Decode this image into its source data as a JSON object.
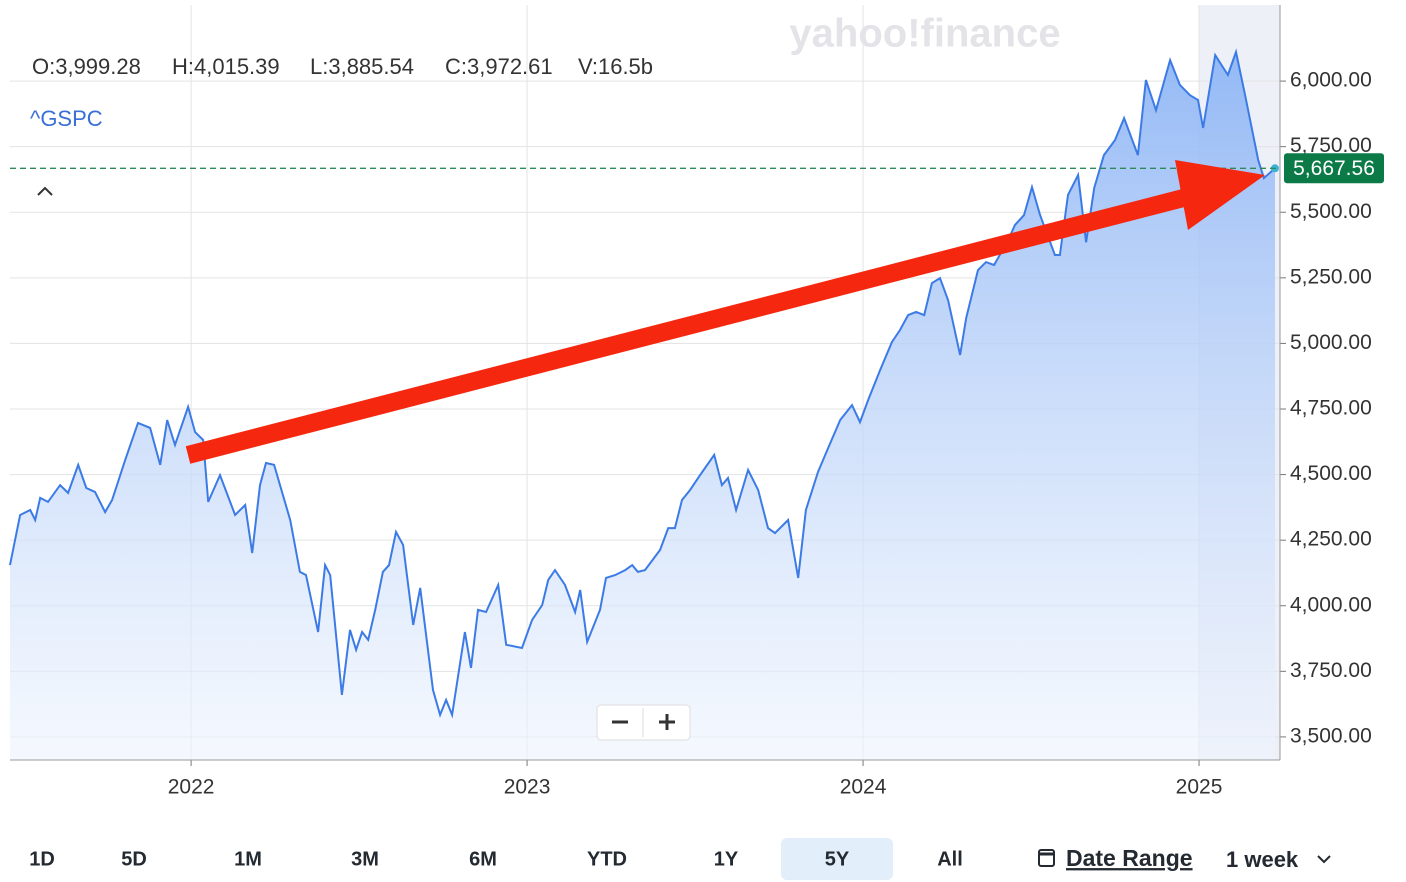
{
  "chart_data": {
    "type": "area",
    "symbol": "^GSPC",
    "watermark": "yahoo!finance",
    "ohlc": [
      "O:3,999.28",
      "H:4,015.39",
      "L:3,885.54",
      "C:3,972.61",
      "V:16.5b"
    ],
    "x": [
      2021.461,
      2021.491,
      2021.521,
      2021.536,
      2021.551,
      2021.574,
      2021.61,
      2021.634,
      2021.664,
      2021.688,
      2021.714,
      2021.744,
      2021.765,
      2021.804,
      2021.842,
      2021.878,
      2021.908,
      2021.929,
      2021.952,
      2021.991,
      2022.012,
      2022.036,
      2022.051,
      2022.086,
      2022.131,
      2022.161,
      2022.182,
      2022.205,
      2022.223,
      2022.247,
      2022.295,
      2022.324,
      2022.342,
      2022.378,
      2022.399,
      2022.414,
      2022.449,
      2022.473,
      2022.491,
      2022.509,
      2022.527,
      2022.548,
      2022.571,
      2022.589,
      2022.61,
      2022.631,
      2022.661,
      2022.682,
      2022.72,
      2022.741,
      2022.759,
      2022.777,
      2022.815,
      2022.833,
      2022.854,
      2022.878,
      2022.914,
      2022.938,
      2022.985,
      2023.015,
      2023.045,
      2023.063,
      2023.083,
      2023.113,
      2023.143,
      2023.158,
      2023.179,
      2023.217,
      2023.235,
      2023.262,
      2023.292,
      2023.313,
      2023.33,
      2023.351,
      2023.396,
      2023.42,
      2023.44,
      2023.461,
      2023.485,
      2023.515,
      2023.557,
      2023.58,
      2023.598,
      2023.622,
      2023.658,
      2023.688,
      2023.717,
      2023.738,
      2023.777,
      2023.807,
      2023.83,
      2023.866,
      2023.896,
      2023.932,
      2023.967,
      2023.991,
      2024.015,
      2024.051,
      2024.086,
      2024.11,
      2024.134,
      2024.158,
      2024.182,
      2024.205,
      2024.229,
      2024.253,
      2024.289,
      2024.307,
      2024.342,
      2024.366,
      2024.39,
      2024.432,
      2024.452,
      2024.479,
      2024.503,
      2024.527,
      2024.571,
      2024.586,
      2024.61,
      2024.64,
      2024.664,
      2024.688,
      2024.717,
      2024.75,
      2024.777,
      2024.818,
      2024.842,
      2024.872,
      2024.914,
      2024.943,
      2024.973,
      2024.997,
      2025.012,
      2025.048,
      2025.086,
      2025.11,
      2025.137,
      2025.176,
      2025.193,
      2025.226
    ],
    "series": [
      {
        "name": "^GSPC",
        "color": "#3c7be6",
        "values": [
          4155,
          4346,
          4365,
          4327,
          4411,
          4396,
          4460,
          4430,
          4537,
          4449,
          4434,
          4357,
          4403,
          4556,
          4697,
          4678,
          4537,
          4708,
          4613,
          4758,
          4662,
          4632,
          4396,
          4498,
          4346,
          4384,
          4201,
          4460,
          4544,
          4537,
          4327,
          4129,
          4117,
          3900,
          4155,
          4117,
          3660,
          3908,
          3832,
          3900,
          3870,
          3984,
          4129,
          4155,
          4281,
          4232,
          3927,
          4068,
          3679,
          3584,
          3641,
          3584,
          3900,
          3763,
          3984,
          3976,
          4079,
          3851,
          3839,
          3946,
          4003,
          4098,
          4136,
          4079,
          3976,
          4060,
          3862,
          3984,
          4106,
          4117,
          4136,
          4155,
          4129,
          4136,
          4213,
          4296,
          4296,
          4403,
          4441,
          4498,
          4575,
          4460,
          4487,
          4365,
          4518,
          4441,
          4296,
          4277,
          4327,
          4106,
          4365,
          4510,
          4601,
          4708,
          4765,
          4700,
          4784,
          4899,
          5005,
          5051,
          5108,
          5120,
          5108,
          5230,
          5249,
          5165,
          4956,
          5097,
          5280,
          5310,
          5299,
          5394,
          5451,
          5489,
          5596,
          5489,
          5337,
          5337,
          5566,
          5642,
          5386,
          5592,
          5718,
          5775,
          5859,
          5718,
          6004,
          5889,
          6080,
          5985,
          5946,
          5928,
          5821,
          6099,
          6023,
          6111,
          5946,
          5699,
          5630,
          5667.56
        ]
      }
    ],
    "last_price": {
      "value": 5667.56,
      "label": "5,667.56"
    },
    "xlim": [
      2021.461,
      2025.241
    ],
    "xticks": [
      2022,
      2023,
      2024,
      2025
    ],
    "ylim": [
      3412,
      6290
    ],
    "yticks": [
      {
        "value": 3500,
        "label": "3,500.00"
      },
      {
        "value": 3750,
        "label": "3,750.00"
      },
      {
        "value": 4000,
        "label": "4,000.00"
      },
      {
        "value": 4250,
        "label": "4,250.00"
      },
      {
        "value": 4500,
        "label": "4,500.00"
      },
      {
        "value": 4750,
        "label": "4,750.00"
      },
      {
        "value": 5000,
        "label": "5,000.00"
      },
      {
        "value": 5250,
        "label": "5,250.00"
      },
      {
        "value": 5500,
        "label": "5,500.00"
      },
      {
        "value": 5750,
        "label": "5,750.00"
      },
      {
        "value": 6000,
        "label": "6,000.00"
      }
    ],
    "grid": true,
    "ranges": [
      "1D",
      "5D",
      "1M",
      "3M",
      "6M",
      "YTD",
      "1Y",
      "5Y",
      "All"
    ],
    "selected_range": "5Y",
    "date_range": "Date Range",
    "interval": "1 week"
  }
}
